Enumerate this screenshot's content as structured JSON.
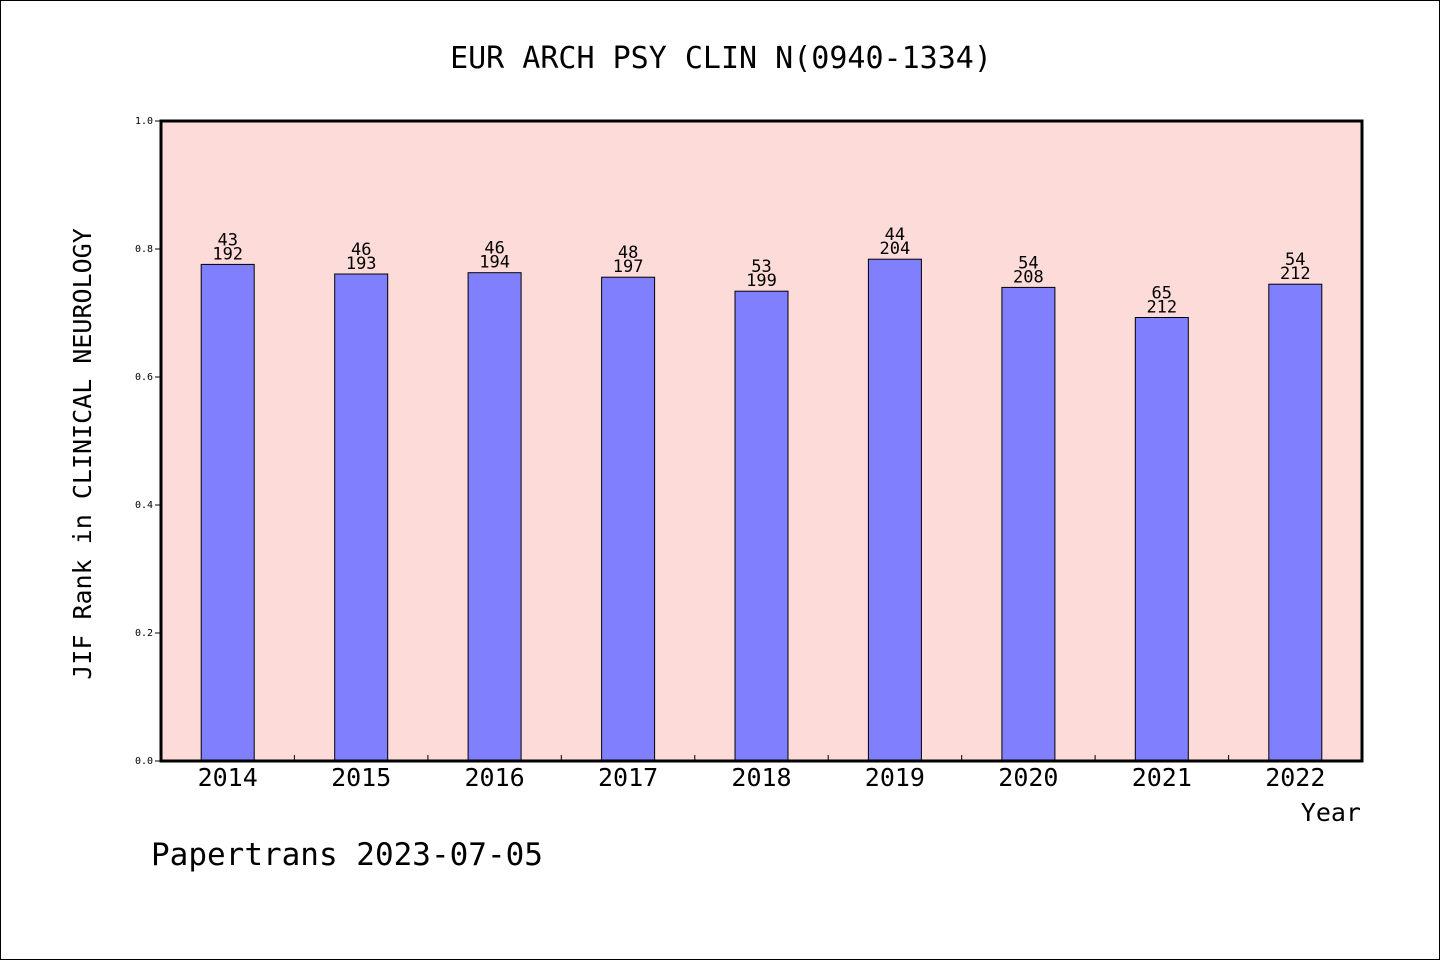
{
  "chart_data": {
    "type": "bar",
    "title": "EUR ARCH PSY CLIN N(0940-1334)",
    "xlabel": "Year",
    "ylabel": "JIF Rank in CLINICAL NEUROLOGY",
    "categories": [
      "2014",
      "2015",
      "2016",
      "2017",
      "2018",
      "2019",
      "2020",
      "2021",
      "2022"
    ],
    "values": [
      0.776,
      0.761,
      0.763,
      0.756,
      0.734,
      0.784,
      0.74,
      0.693,
      0.745
    ],
    "ranks": [
      "43",
      "46",
      "46",
      "48",
      "53",
      "44",
      "54",
      "65",
      "54"
    ],
    "totals": [
      "192",
      "193",
      "194",
      "197",
      "199",
      "204",
      "208",
      "212",
      "212"
    ],
    "ylim": [
      0,
      1.0
    ],
    "yticks": [
      "0.0",
      "0.2",
      "0.4",
      "0.6",
      "0.8",
      "1.0"
    ],
    "grid": false,
    "colors": {
      "plot_background": "#fddbd8",
      "bar_fill": "#8080ff",
      "axis": "#000000"
    }
  },
  "footer": {
    "credit": "Papertrans 2023-07-05"
  }
}
